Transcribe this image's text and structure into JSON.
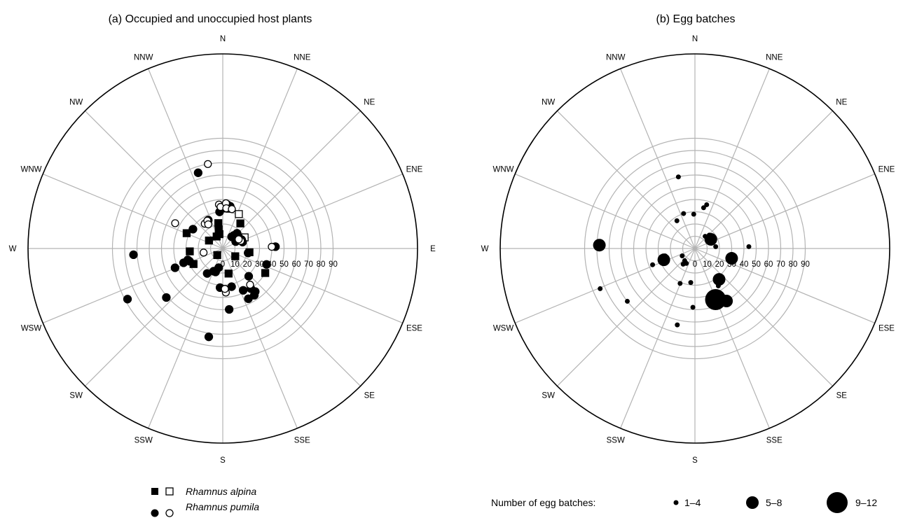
{
  "chart_data": [
    {
      "type": "scatter",
      "coordinate_system": "polar",
      "title": "(a)  Occupied and unoccupied host plants",
      "direction_labels": [
        "N",
        "NNE",
        "NE",
        "ENE",
        "E",
        "ESE",
        "SE",
        "SSE",
        "S",
        "SSW",
        "SW",
        "WSW",
        "W",
        "WNW",
        "NW",
        "NNW"
      ],
      "r_ticks": [
        0,
        10,
        20,
        30,
        40,
        50,
        60,
        70,
        80,
        90
      ],
      "r_max": 90,
      "grid": true,
      "series": [
        {
          "name": "Rhamnus alpina",
          "marker": "square",
          "occupied": true,
          "points": [
            [
              333,
              11
            ],
            [
              347,
              12
            ],
            [
              350,
              21
            ],
            [
              348,
              16
            ],
            [
              300,
              13
            ],
            [
              293,
              32
            ],
            [
              220,
              7
            ],
            [
              265,
              27
            ],
            [
              242,
              27
            ],
            [
              167,
              21
            ],
            [
              122,
              12
            ],
            [
              98,
              22
            ],
            [
              35,
              25
            ],
            [
              120,
              40
            ],
            [
              10,
              33
            ]
          ]
        },
        {
          "name": "Rhamnus alpina",
          "marker": "square",
          "occupied": false,
          "points": [
            [
              63,
              20
            ],
            [
              25,
              31
            ]
          ]
        },
        {
          "name": "Rhamnus pumila",
          "marker": "circle",
          "occupied": true,
          "points": [
            [
              342,
              65
            ],
            [
              303,
              29
            ],
            [
              355,
              30
            ],
            [
              10,
              35
            ],
            [
              6,
              36
            ],
            [
              3,
              33
            ],
            [
              333,
              26
            ],
            [
              250,
              34
            ],
            [
              252,
              30
            ],
            [
              249,
              29
            ],
            [
              248,
              42
            ],
            [
              192,
              16
            ],
            [
              197,
              20
            ],
            [
              212,
              24
            ],
            [
              202,
              20
            ],
            [
              184,
              32
            ],
            [
              167,
              32
            ],
            [
              154,
              38
            ],
            [
              145,
              40
            ],
            [
              137,
              31
            ],
            [
              153,
              46
            ],
            [
              146,
              46
            ],
            [
              143,
              44
            ],
            [
              174,
              50
            ],
            [
              189,
              73
            ],
            [
              229,
              61
            ],
            [
              242,
              88
            ],
            [
              266,
              73
            ],
            [
              110,
              38
            ],
            [
              88,
              43
            ],
            [
              100,
              21
            ],
            [
              72,
              17
            ],
            [
              65,
              17
            ],
            [
              55,
              16
            ],
            [
              57,
              14
            ],
            [
              62,
              12
            ],
            [
              40,
              14
            ],
            [
              43,
              17
            ],
            [
              45,
              13
            ],
            [
              37,
              12
            ],
            [
              61,
              12
            ]
          ]
        },
        {
          "name": "Rhamnus pumila",
          "marker": "circle",
          "occupied": false,
          "points": [
            [
              350,
              70
            ],
            [
              355,
              36
            ],
            [
              357,
              34
            ],
            [
              4,
              37
            ],
            [
              5,
              33
            ],
            [
              13,
              33
            ],
            [
              324,
              25
            ],
            [
              331,
              26
            ],
            [
              329,
              23
            ],
            [
              298,
              44
            ],
            [
              258,
              16
            ],
            [
              143,
              37
            ],
            [
              176,
              36
            ],
            [
              177,
              33
            ],
            [
              88,
              40
            ],
            [
              67,
              16
            ],
            [
              60,
              15
            ]
          ]
        }
      ]
    },
    {
      "type": "scatter",
      "coordinate_system": "polar",
      "title": "(b)  Egg batches",
      "direction_labels": [
        "N",
        "NNE",
        "NE",
        "ENE",
        "E",
        "ESE",
        "SE",
        "SSE",
        "S",
        "SSW",
        "SW",
        "WSW",
        "W",
        "WNW",
        "NW",
        "NNW"
      ],
      "r_ticks": [
        0,
        10,
        20,
        30,
        40,
        50,
        60,
        70,
        80,
        90
      ],
      "r_max": 90,
      "grid": true,
      "size_legend_title": "Number of egg batches:",
      "size_classes": [
        "1–4",
        "5–8",
        "9–12"
      ],
      "points": [
        {
          "angle": 347,
          "r": 60,
          "size_class": "1–4"
        },
        {
          "angle": 15,
          "r": 37,
          "size_class": "1–4"
        },
        {
          "angle": 12,
          "r": 34,
          "size_class": "1–4"
        },
        {
          "angle": 342,
          "r": 30,
          "size_class": "1–4"
        },
        {
          "angle": 358,
          "r": 28,
          "size_class": "1–4"
        },
        {
          "angle": 327,
          "r": 27,
          "size_class": "1–4"
        },
        {
          "angle": 40,
          "r": 13,
          "size_class": "1–4"
        },
        {
          "angle": 47,
          "r": 16,
          "size_class": "1–4"
        },
        {
          "angle": 57,
          "r": 15,
          "size_class": "1–4"
        },
        {
          "angle": 66,
          "r": 13,
          "size_class": "1–4"
        },
        {
          "angle": 60,
          "r": 15,
          "size_class": "5–8"
        },
        {
          "angle": 69,
          "r": 16,
          "size_class": "1–4"
        },
        {
          "angle": 72,
          "r": 14,
          "size_class": "1–4"
        },
        {
          "angle": 85,
          "r": 17,
          "size_class": "1–4"
        },
        {
          "angle": 88,
          "r": 44,
          "size_class": "1–4"
        },
        {
          "angle": 105,
          "r": 31,
          "size_class": "5–8"
        },
        {
          "angle": 142,
          "r": 32,
          "size_class": "5–8"
        },
        {
          "angle": 148,
          "r": 36,
          "size_class": "1–4"
        },
        {
          "angle": 158,
          "r": 45,
          "size_class": "9–12"
        },
        {
          "angle": 149,
          "r": 50,
          "size_class": "5–8"
        },
        {
          "angle": 182,
          "r": 48,
          "size_class": "1–4"
        },
        {
          "angle": 187,
          "r": 28,
          "size_class": "1–4"
        },
        {
          "angle": 203,
          "r": 31,
          "size_class": "1–4"
        },
        {
          "angle": 193,
          "r": 64,
          "size_class": "1–4"
        },
        {
          "angle": 210,
          "r": 14,
          "size_class": "1–4"
        },
        {
          "angle": 220,
          "r": 13,
          "size_class": "1–4"
        },
        {
          "angle": 217,
          "r": 16,
          "size_class": "1–4"
        },
        {
          "angle": 240,
          "r": 12,
          "size_class": "1–4"
        },
        {
          "angle": 250,
          "r": 27,
          "size_class": "5–8"
        },
        {
          "angle": 256,
          "r": 25,
          "size_class": "1–4"
        },
        {
          "angle": 255,
          "r": 29,
          "size_class": "1–4"
        },
        {
          "angle": 249,
          "r": 37,
          "size_class": "1–4"
        },
        {
          "angle": 232,
          "r": 70,
          "size_class": "1–4"
        },
        {
          "angle": 247,
          "r": 84,
          "size_class": "1–4"
        },
        {
          "angle": 272,
          "r": 78,
          "size_class": "5–8"
        }
      ]
    }
  ],
  "legend_a": {
    "species": [
      "Rhamnus alpina",
      "Rhamnus pumila"
    ]
  },
  "legend_b": {
    "title": "Number of egg batches:",
    "classes": [
      "1–4",
      "5–8",
      "9–12"
    ]
  },
  "colors": {
    "grid": "#b3b3b3",
    "filled": "#000000",
    "open": "#ffffff"
  }
}
